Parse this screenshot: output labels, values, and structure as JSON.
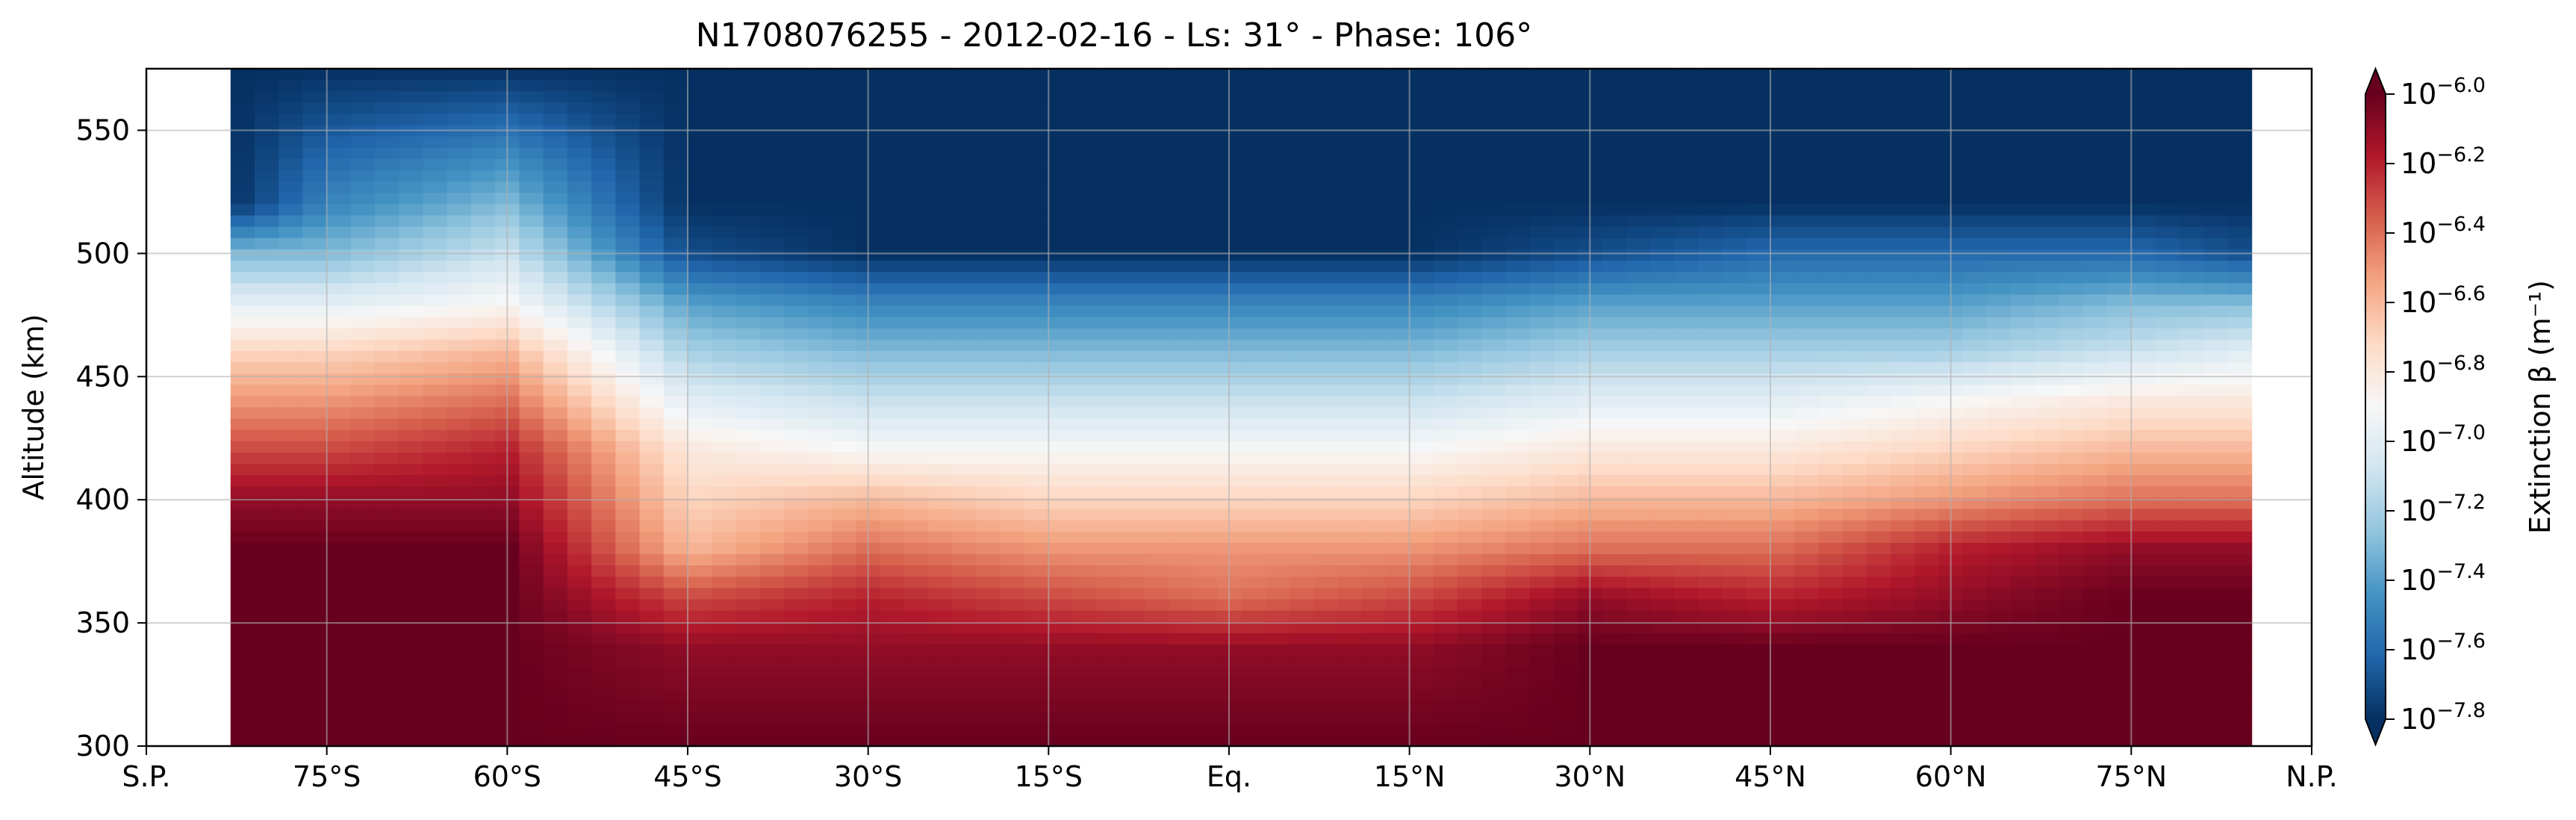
{
  "chart_data": {
    "type": "heatmap",
    "title": "N1708076255 - 2012-02-16 - Ls: 31° - Phase: 106°",
    "xlabel": "",
    "ylabel": "Altitude (km)",
    "colorbar_label": "Extinction β (m⁻¹)",
    "colormap": "RdBu_r",
    "xlim": [
      -90,
      90
    ],
    "ylim": [
      300,
      575
    ],
    "data_x_range": [
      -83,
      85
    ],
    "x_ticks": [
      {
        "value": -90,
        "label": "S.P."
      },
      {
        "value": -75,
        "label": "75°S"
      },
      {
        "value": -60,
        "label": "60°S"
      },
      {
        "value": -45,
        "label": "45°S"
      },
      {
        "value": -30,
        "label": "30°S"
      },
      {
        "value": -15,
        "label": "15°S"
      },
      {
        "value": 0,
        "label": "Eq."
      },
      {
        "value": 15,
        "label": "15°N"
      },
      {
        "value": 30,
        "label": "30°N"
      },
      {
        "value": 45,
        "label": "45°N"
      },
      {
        "value": 60,
        "label": "60°N"
      },
      {
        "value": 75,
        "label": "75°N"
      },
      {
        "value": 90,
        "label": "N.P."
      }
    ],
    "y_ticks": [
      300,
      350,
      400,
      450,
      500,
      550
    ],
    "colorbar_range": [
      -7.8,
      -6.0
    ],
    "colorbar_ticks": [
      {
        "value": -6.0,
        "base": "10",
        "exp": "−6.0"
      },
      {
        "value": -6.2,
        "base": "10",
        "exp": "−6.2"
      },
      {
        "value": -6.4,
        "base": "10",
        "exp": "−6.4"
      },
      {
        "value": -6.6,
        "base": "10",
        "exp": "−6.6"
      },
      {
        "value": -6.8,
        "base": "10",
        "exp": "−6.8"
      },
      {
        "value": -7.0,
        "base": "10",
        "exp": "−7.0"
      },
      {
        "value": -7.2,
        "base": "10",
        "exp": "−7.2"
      },
      {
        "value": -7.4,
        "base": "10",
        "exp": "−7.4"
      },
      {
        "value": -7.6,
        "base": "10",
        "exp": "−7.6"
      },
      {
        "value": -7.8,
        "base": "10",
        "exp": "−7.8"
      }
    ],
    "grid": true,
    "field_profile": {
      "latitudes": [
        -83,
        -75,
        -60,
        -45,
        -30,
        -15,
        0,
        15,
        30,
        45,
        60,
        75,
        85
      ],
      "altitudes": [
        300,
        340,
        360,
        380,
        400,
        420,
        440,
        460,
        480,
        500,
        520,
        575
      ],
      "log_extinction": [
        [
          -6.0,
          -6.0,
          -6.0,
          -6.0,
          -6.0,
          -6.0,
          -6.0,
          -6.0,
          -6.0,
          -6.0,
          -6.0,
          -6.0,
          -6.0
        ],
        [
          -6.0,
          -6.0,
          -6.0,
          -6.1,
          -6.1,
          -6.1,
          -6.1,
          -6.1,
          -6.0,
          -6.0,
          -6.0,
          -6.0,
          -6.0
        ],
        [
          -6.0,
          -6.0,
          -6.0,
          -6.3,
          -6.2,
          -6.3,
          -6.4,
          -6.3,
          -6.1,
          -6.2,
          -6.1,
          -6.0,
          -6.0
        ],
        [
          -6.0,
          -6.0,
          -6.0,
          -6.6,
          -6.4,
          -6.5,
          -6.5,
          -6.5,
          -6.4,
          -6.4,
          -6.2,
          -6.1,
          -6.1
        ],
        [
          -6.1,
          -6.1,
          -6.1,
          -6.7,
          -6.6,
          -6.7,
          -6.7,
          -6.7,
          -6.6,
          -6.6,
          -6.5,
          -6.4,
          -6.4
        ],
        [
          -6.3,
          -6.3,
          -6.2,
          -6.8,
          -6.9,
          -6.9,
          -6.9,
          -6.9,
          -6.8,
          -6.8,
          -6.7,
          -6.6,
          -6.6
        ],
        [
          -6.5,
          -6.5,
          -6.4,
          -7.0,
          -7.1,
          -7.1,
          -7.1,
          -7.1,
          -7.0,
          -7.0,
          -6.9,
          -6.8,
          -6.8
        ],
        [
          -6.7,
          -6.7,
          -6.6,
          -7.2,
          -7.3,
          -7.3,
          -7.3,
          -7.3,
          -7.2,
          -7.2,
          -7.2,
          -7.1,
          -7.0
        ],
        [
          -7.0,
          -7.0,
          -6.9,
          -7.4,
          -7.5,
          -7.5,
          -7.5,
          -7.5,
          -7.4,
          -7.4,
          -7.4,
          -7.3,
          -7.3
        ],
        [
          -7.3,
          -7.3,
          -7.1,
          -7.7,
          -7.8,
          -7.8,
          -7.8,
          -7.8,
          -7.7,
          -7.6,
          -7.6,
          -7.6,
          -7.7
        ],
        [
          -7.8,
          -7.5,
          -7.3,
          -7.8,
          -7.8,
          -7.8,
          -7.8,
          -7.8,
          -7.8,
          -7.8,
          -7.8,
          -7.8,
          -7.8
        ],
        [
          -7.8,
          -7.8,
          -7.8,
          -7.8,
          -7.8,
          -7.8,
          -7.8,
          -7.8,
          -7.8,
          -7.8,
          -7.8,
          -7.8,
          -7.8
        ]
      ]
    }
  }
}
